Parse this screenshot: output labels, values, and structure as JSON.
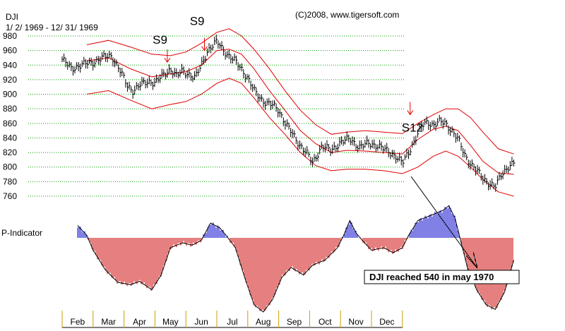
{
  "chart_data": {
    "type": "bar",
    "ticker": "DJI",
    "date_range": "1/ 2/ 1969 - 12/ 31/ 1969",
    "copyright": "(C)2008, www.tigersoft.com",
    "ylim": [
      760,
      980
    ],
    "yticks": [
      980,
      960,
      940,
      920,
      900,
      880,
      860,
      840,
      820,
      800,
      780,
      760
    ],
    "grid": true,
    "months": [
      "Feb",
      "Mar",
      "Apr",
      "May",
      "Jun",
      "Jul",
      "Aug",
      "Sep",
      "Oct",
      "Nov",
      "Dec"
    ],
    "price_path": [
      [
        0,
        948
      ],
      [
        0.3,
        935
      ],
      [
        0.6,
        940
      ],
      [
        1.0,
        944
      ],
      [
        1.3,
        950
      ],
      [
        1.6,
        953
      ],
      [
        1.9,
        930
      ],
      [
        2.1,
        912
      ],
      [
        2.3,
        905
      ],
      [
        2.5,
        912
      ],
      [
        2.8,
        918
      ],
      [
        3.0,
        916
      ],
      [
        3.3,
        927
      ],
      [
        3.5,
        935
      ],
      [
        3.7,
        925
      ],
      [
        3.9,
        932
      ],
      [
        4.1,
        928
      ],
      [
        4.3,
        922
      ],
      [
        4.5,
        940
      ],
      [
        4.7,
        960
      ],
      [
        4.9,
        968
      ],
      [
        5.0,
        972
      ],
      [
        5.2,
        962
      ],
      [
        5.4,
        952
      ],
      [
        5.6,
        945
      ],
      [
        5.8,
        935
      ],
      [
        6.0,
        922
      ],
      [
        6.2,
        905
      ],
      [
        6.4,
        895
      ],
      [
        6.6,
        888
      ],
      [
        6.8,
        885
      ],
      [
        7.0,
        878
      ],
      [
        7.2,
        862
      ],
      [
        7.4,
        848
      ],
      [
        7.6,
        835
      ],
      [
        7.9,
        820
      ],
      [
        8.1,
        805
      ],
      [
        8.4,
        830
      ],
      [
        8.7,
        822
      ],
      [
        9.0,
        835
      ],
      [
        9.3,
        838
      ],
      [
        9.6,
        828
      ],
      [
        9.9,
        832
      ],
      [
        10.2,
        830
      ],
      [
        10.5,
        822
      ],
      [
        10.8,
        815
      ],
      [
        11.0,
        805
      ],
      [
        11.2,
        820
      ],
      [
        11.4,
        838
      ],
      [
        11.6,
        855
      ],
      [
        11.8,
        862
      ],
      [
        12.0,
        858
      ],
      [
        12.2,
        862
      ],
      [
        12.4,
        860
      ],
      [
        12.6,
        850
      ],
      [
        12.8,
        838
      ],
      [
        13.0,
        818
      ],
      [
        13.2,
        805
      ],
      [
        13.4,
        795
      ],
      [
        13.6,
        785
      ],
      [
        13.8,
        778
      ],
      [
        14.0,
        772
      ],
      [
        14.2,
        790
      ],
      [
        14.4,
        800
      ],
      [
        14.6,
        805
      ]
    ],
    "band_upper": [
      [
        0.8,
        968
      ],
      [
        1.5,
        974
      ],
      [
        2.2,
        965
      ],
      [
        2.9,
        955
      ],
      [
        3.5,
        953
      ],
      [
        4.0,
        958
      ],
      [
        4.5,
        970
      ],
      [
        5.0,
        985
      ],
      [
        5.4,
        990
      ],
      [
        5.8,
        980
      ],
      [
        6.2,
        962
      ],
      [
        6.7,
        935
      ],
      [
        7.2,
        905
      ],
      [
        7.7,
        878
      ],
      [
        8.2,
        858
      ],
      [
        8.7,
        845
      ],
      [
        9.2,
        848
      ],
      [
        9.8,
        850
      ],
      [
        10.4,
        848
      ],
      [
        11.0,
        846
      ],
      [
        11.5,
        860
      ],
      [
        12.0,
        872
      ],
      [
        12.4,
        880
      ],
      [
        12.8,
        880
      ],
      [
        13.2,
        868
      ],
      [
        13.6,
        848
      ],
      [
        14.1,
        825
      ],
      [
        14.6,
        818
      ]
    ],
    "band_mid": [
      [
        0.8,
        946
      ],
      [
        1.5,
        950
      ],
      [
        2.2,
        935
      ],
      [
        2.9,
        924
      ],
      [
        3.5,
        928
      ],
      [
        4.0,
        931
      ],
      [
        4.5,
        940
      ],
      [
        5.0,
        960
      ],
      [
        5.4,
        962
      ],
      [
        5.8,
        955
      ],
      [
        6.2,
        935
      ],
      [
        6.7,
        905
      ],
      [
        7.2,
        878
      ],
      [
        7.7,
        850
      ],
      [
        8.2,
        832
      ],
      [
        8.7,
        820
      ],
      [
        9.2,
        823
      ],
      [
        9.8,
        822
      ],
      [
        10.4,
        820
      ],
      [
        11.0,
        818
      ],
      [
        11.5,
        838
      ],
      [
        12.0,
        852
      ],
      [
        12.4,
        856
      ],
      [
        12.8,
        850
      ],
      [
        13.2,
        830
      ],
      [
        13.6,
        808
      ],
      [
        14.1,
        792
      ],
      [
        14.6,
        790
      ]
    ],
    "band_lower": [
      [
        0.8,
        900
      ],
      [
        1.5,
        905
      ],
      [
        2.2,
        892
      ],
      [
        2.9,
        880
      ],
      [
        3.5,
        886
      ],
      [
        4.0,
        890
      ],
      [
        4.5,
        900
      ],
      [
        5.0,
        915
      ],
      [
        5.4,
        922
      ],
      [
        5.8,
        915
      ],
      [
        6.2,
        895
      ],
      [
        6.7,
        868
      ],
      [
        7.2,
        845
      ],
      [
        7.7,
        820
      ],
      [
        8.2,
        802
      ],
      [
        8.7,
        795
      ],
      [
        9.2,
        797
      ],
      [
        9.8,
        797
      ],
      [
        10.4,
        795
      ],
      [
        11.0,
        791
      ],
      [
        11.5,
        800
      ],
      [
        12.0,
        815
      ],
      [
        12.4,
        822
      ],
      [
        12.8,
        815
      ],
      [
        13.2,
        800
      ],
      [
        13.6,
        783
      ],
      [
        14.1,
        766
      ],
      [
        14.6,
        760
      ]
    ],
    "signals": [
      {
        "label": "S9",
        "x": 3.4,
        "y": 944,
        "text_offset": [
          -0.2,
          62
        ]
      },
      {
        "label": "S9",
        "x": 4.6,
        "y": 960,
        "text_offset": [
          -0.2,
          72
        ]
      },
      {
        "label": "S12",
        "x": 11.25,
        "y": 872,
        "text_offset": [
          0,
          12
        ]
      }
    ],
    "signal_arrow_style": "red-down-arrow",
    "indicator": {
      "label": "P-Indicator",
      "path": [
        [
          0.5,
          0.25
        ],
        [
          0.8,
          0.05
        ],
        [
          1.0,
          -0.25
        ],
        [
          1.4,
          -0.65
        ],
        [
          1.8,
          -0.9
        ],
        [
          2.2,
          -0.95
        ],
        [
          2.5,
          -0.88
        ],
        [
          2.9,
          -1.05
        ],
        [
          3.2,
          -0.75
        ],
        [
          3.5,
          -0.2
        ],
        [
          3.9,
          -0.1
        ],
        [
          4.2,
          -0.15
        ],
        [
          4.5,
          -0.05
        ],
        [
          4.8,
          0.3
        ],
        [
          5.1,
          0.2
        ],
        [
          5.3,
          0.05
        ],
        [
          5.6,
          -0.2
        ],
        [
          5.9,
          -0.8
        ],
        [
          6.2,
          -1.35
        ],
        [
          6.5,
          -1.5
        ],
        [
          6.8,
          -1.25
        ],
        [
          7.1,
          -0.8
        ],
        [
          7.4,
          -0.6
        ],
        [
          7.8,
          -0.75
        ],
        [
          8.1,
          -0.55
        ],
        [
          8.5,
          -0.45
        ],
        [
          8.9,
          -0.2
        ],
        [
          9.1,
          0.05
        ],
        [
          9.3,
          0.35
        ],
        [
          9.5,
          0.1
        ],
        [
          9.7,
          -0.05
        ],
        [
          10.0,
          -0.25
        ],
        [
          10.4,
          -0.2
        ],
        [
          10.7,
          -0.3
        ],
        [
          11.0,
          -0.2
        ],
        [
          11.2,
          0.05
        ],
        [
          11.5,
          0.35
        ],
        [
          11.9,
          0.45
        ],
        [
          12.3,
          0.55
        ],
        [
          12.5,
          0.65
        ],
        [
          12.7,
          0.4
        ],
        [
          12.9,
          -0.1
        ],
        [
          13.1,
          -0.6
        ],
        [
          13.4,
          -1.05
        ],
        [
          13.7,
          -1.35
        ],
        [
          14.0,
          -1.45
        ],
        [
          14.3,
          -1.1
        ],
        [
          14.6,
          -0.45
        ]
      ],
      "positive_color": "#0000cc",
      "negative_color": "#cc0000"
    },
    "annotation": {
      "text": "DJI reached 540 in may 1970",
      "arrow": "black-diagonal-arrow"
    },
    "colors": {
      "price_bars": "#000000",
      "bands": "#e00000",
      "gridlines": "#00a000",
      "signal_arrows": "#e00000",
      "month_ticks": "#c8a000"
    }
  }
}
